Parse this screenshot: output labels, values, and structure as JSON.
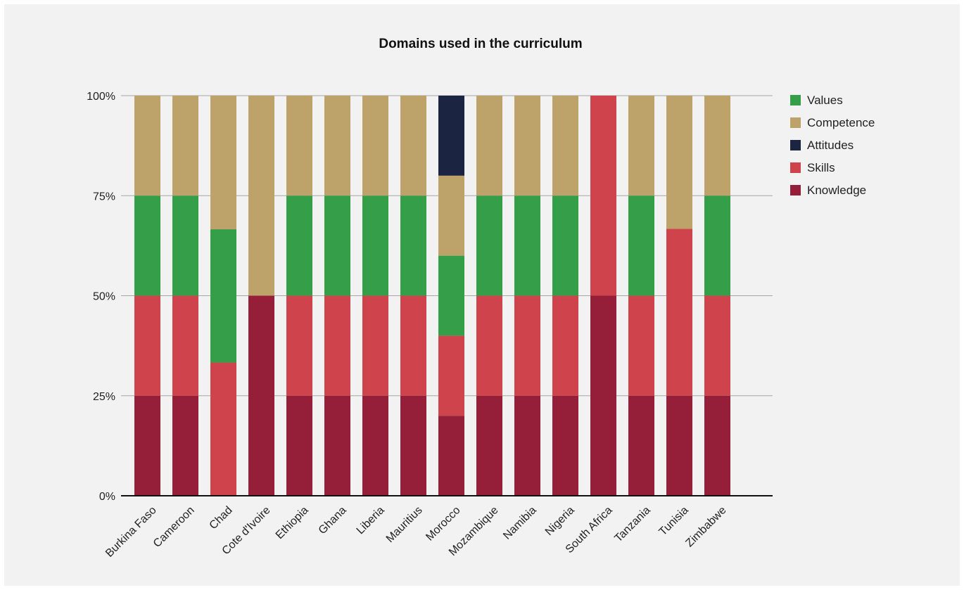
{
  "chart_data": {
    "type": "bar",
    "stacked": true,
    "title": "Domains used in the curriculum",
    "xlabel": "",
    "ylabel": "",
    "ylim": [
      0,
      100
    ],
    "y_ticks": [
      "0%",
      "25%",
      "50%",
      "75%",
      "100%"
    ],
    "grid": true,
    "legend_position": "right",
    "categories": [
      "Burkina Faso",
      "Cameroon",
      "Chad",
      "Cote d'Ivoire",
      "Ethiopia",
      "Ghana",
      "Liberia",
      "Mauritius",
      "Morocco",
      "Mozambique",
      "Namibia",
      "Nigeria",
      "South Africa",
      "Tanzania",
      "Tunisia",
      "Zimbabwe"
    ],
    "series": [
      {
        "name": "Knowledge",
        "color": "#951e38",
        "values": [
          25,
          25,
          0,
          50,
          25,
          25,
          25,
          25,
          20,
          25,
          25,
          25,
          50,
          25,
          25,
          25
        ]
      },
      {
        "name": "Skills",
        "color": "#cf444c",
        "values": [
          25,
          25,
          33.3,
          0,
          25,
          25,
          25,
          25,
          20,
          25,
          25,
          25,
          50,
          25,
          41.7,
          25
        ]
      },
      {
        "name": "Values",
        "color": "#349f48",
        "values": [
          25,
          25,
          33.3,
          0,
          25,
          25,
          25,
          25,
          20,
          25,
          25,
          25,
          0,
          25,
          0,
          25
        ]
      },
      {
        "name": "Competence",
        "color": "#bda26a",
        "values": [
          25,
          25,
          33.4,
          50,
          25,
          25,
          25,
          25,
          20,
          25,
          25,
          25,
          0,
          25,
          33.3,
          25
        ]
      },
      {
        "name": "Attitudes",
        "color": "#1b2440",
        "values": [
          0,
          0,
          0,
          0,
          0,
          0,
          0,
          0,
          20,
          0,
          0,
          0,
          0,
          0,
          0,
          0
        ]
      }
    ],
    "legend_order": [
      "Values",
      "Competence",
      "Attitudes",
      "Skills",
      "Knowledge"
    ]
  }
}
